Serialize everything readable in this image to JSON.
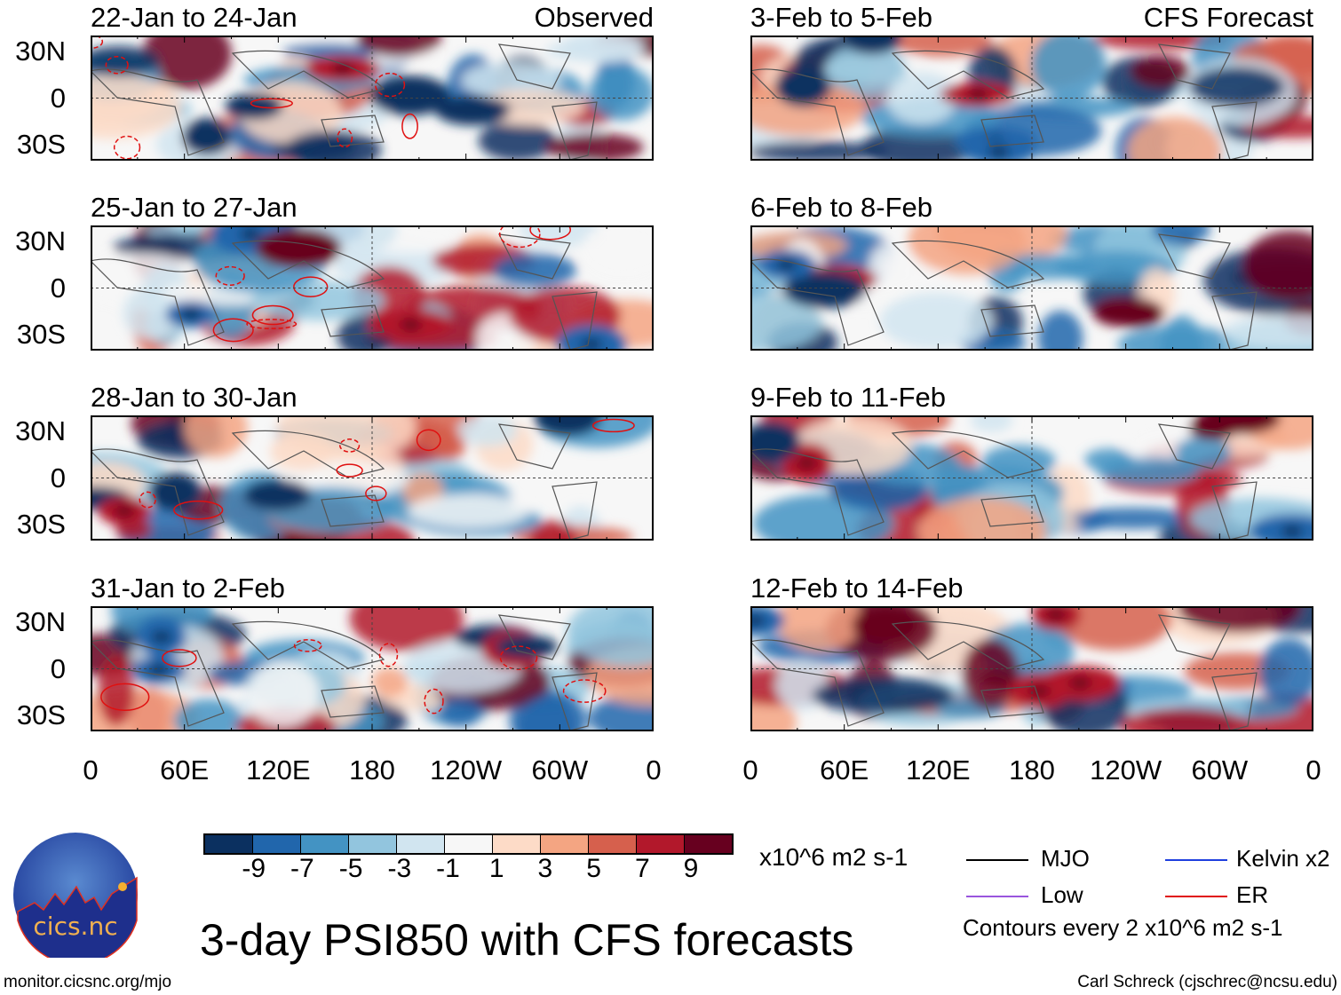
{
  "panels_left": [
    {
      "title": "22-Jan to 24-Jan",
      "tag": "Observed"
    },
    {
      "title": "25-Jan to 27-Jan"
    },
    {
      "title": "28-Jan to 30-Jan"
    },
    {
      "title": "31-Jan to 2-Feb"
    }
  ],
  "panels_right": [
    {
      "title": "3-Feb to 5-Feb",
      "tag": "CFS Forecast"
    },
    {
      "title": "6-Feb to 8-Feb"
    },
    {
      "title": "9-Feb to 11-Feb"
    },
    {
      "title": "12-Feb to 14-Feb"
    }
  ],
  "lat_labels": [
    "30N",
    "0",
    "30S"
  ],
  "lon_labels": [
    "0",
    "60E",
    "120E",
    "180",
    "120W",
    "60W",
    "0"
  ],
  "colorbar": {
    "colors": [
      "#0b3060",
      "#2166ac",
      "#4393c3",
      "#92c5de",
      "#d1e5f0",
      "#f7f7f7",
      "#fddbc7",
      "#f4a582",
      "#d6604d",
      "#b2182b",
      "#67001f"
    ],
    "labels": [
      "-9",
      "-7",
      "-5",
      "-3",
      "-1",
      "1",
      "3",
      "5",
      "7",
      "9"
    ],
    "units": "x10^6 m2 s-1"
  },
  "legend": {
    "items": [
      {
        "label": "MJO",
        "color": "#000000"
      },
      {
        "label": "Kelvin x2",
        "color": "#1f3fdf"
      },
      {
        "label": "Low",
        "color": "#9955dd"
      },
      {
        "label": "ER",
        "color": "#e01010"
      }
    ],
    "contours": "Contours every 2 x10^6 m2 s-1"
  },
  "title": "3-day PSI850 with CFS forecasts",
  "logo_text": "cics.nc",
  "logo_ring": "Cooperative Institute for Climate and Satellites",
  "url": "monitor.cicsnc.org/mjo",
  "credit": "Carl Schreck (cjschrec@ncsu.edu)"
}
